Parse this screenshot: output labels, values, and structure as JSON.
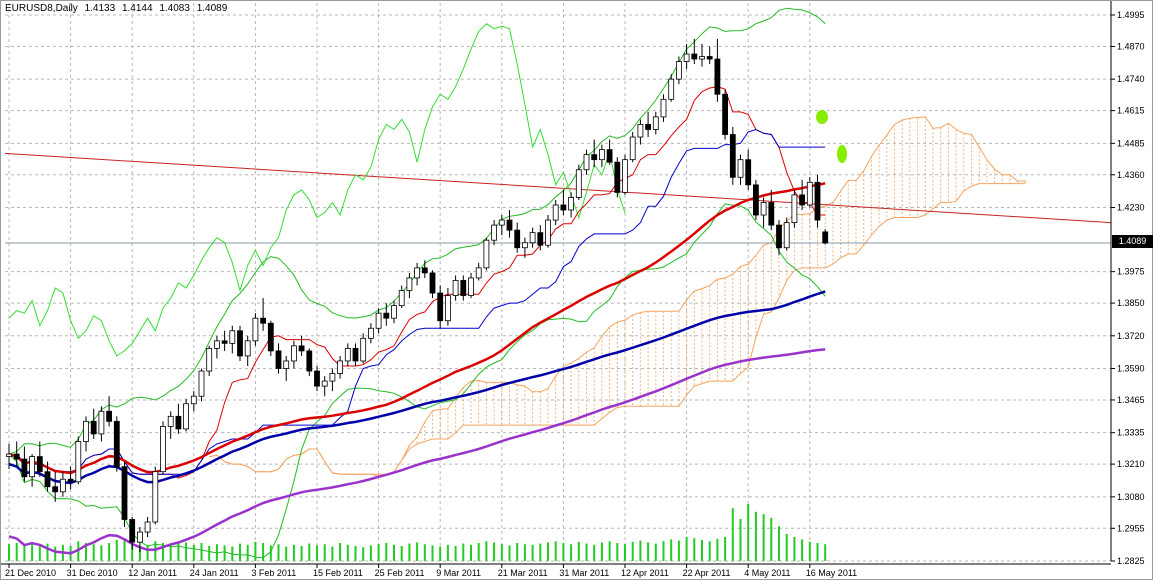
{
  "chart_data": {
    "type": "candlestick",
    "symbol": "EURUSD8",
    "timeframe": "Daily",
    "last_ohlc": {
      "open": "1.4133",
      "high": "1.4144",
      "low": "1.4083",
      "close": "1.4089"
    },
    "current_price_label": "1.4089",
    "current_price": 1.4089,
    "y_ticks": [
      "1.4995",
      "1.4870",
      "1.4740",
      "1.4615",
      "1.4485",
      "1.4360",
      "1.4230",
      "1.3975",
      "1.3850",
      "1.3720",
      "1.3590",
      "1.3465",
      "1.3335",
      "1.3210",
      "1.3080",
      "1.2955",
      "1.2825"
    ],
    "x_ticks": [
      "21 Dec 2010",
      "31 Dec 2010",
      "12 Jan 2011",
      "24 Jan 2011",
      "3 Feb 2011",
      "15 Feb 2011",
      "25 Feb 2011",
      "9 Mar 2011",
      "21 Mar 2011",
      "31 Mar 2011",
      "12 Apr 2011",
      "22 Apr 2011",
      "4 May 2011",
      "16 May 2011"
    ],
    "ylim": [
      1.2825,
      1.4995
    ],
    "grid": true,
    "colors": {
      "bull": "#ffffff",
      "bear": "#000000",
      "wick": "#000000",
      "sma_fast": "#dd0000",
      "sma_mid": "#0000aa",
      "sma_slow": "#9933cc",
      "bollinger": "#22bb22",
      "chikou": "#33dd33",
      "kijun": "#0000cc",
      "tenkan": "#dd0000",
      "cloud": "#f4a460",
      "trendline": "#cc2222",
      "volume": "#22cc22",
      "marker": "#88ee00"
    },
    "candles": [
      [
        1.324,
        1.329,
        1.319,
        1.325
      ],
      [
        1.325,
        1.33,
        1.32,
        1.323
      ],
      [
        1.323,
        1.328,
        1.314,
        1.316
      ],
      [
        1.316,
        1.325,
        1.312,
        1.324
      ],
      [
        1.324,
        1.33,
        1.316,
        1.318
      ],
      [
        1.318,
        1.322,
        1.31,
        1.312
      ],
      [
        1.312,
        1.318,
        1.306,
        1.31
      ],
      [
        1.31,
        1.318,
        1.308,
        1.315
      ],
      [
        1.315,
        1.32,
        1.311,
        1.314
      ],
      [
        1.314,
        1.332,
        1.313,
        1.33
      ],
      [
        1.33,
        1.34,
        1.326,
        1.338
      ],
      [
        1.338,
        1.343,
        1.331,
        1.333
      ],
      [
        1.333,
        1.344,
        1.33,
        1.342
      ],
      [
        1.342,
        1.348,
        1.336,
        1.338
      ],
      [
        1.338,
        1.34,
        1.318,
        1.32
      ],
      [
        1.32,
        1.322,
        1.296,
        1.299
      ],
      [
        1.299,
        1.3,
        1.287,
        1.29
      ],
      [
        1.29,
        1.296,
        1.286,
        1.294
      ],
      [
        1.294,
        1.3,
        1.292,
        1.298
      ],
      [
        1.298,
        1.32,
        1.297,
        1.318
      ],
      [
        1.318,
        1.338,
        1.317,
        1.336
      ],
      [
        1.336,
        1.342,
        1.331,
        1.34
      ],
      [
        1.34,
        1.345,
        1.333,
        1.335
      ],
      [
        1.335,
        1.347,
        1.334,
        1.345
      ],
      [
        1.345,
        1.35,
        1.342,
        1.348
      ],
      [
        1.348,
        1.359,
        1.346,
        1.358
      ],
      [
        1.358,
        1.368,
        1.356,
        1.367
      ],
      [
        1.367,
        1.372,
        1.363,
        1.37
      ],
      [
        1.37,
        1.374,
        1.366,
        1.369
      ],
      [
        1.369,
        1.376,
        1.365,
        1.374
      ],
      [
        1.374,
        1.376,
        1.362,
        1.364
      ],
      [
        1.364,
        1.372,
        1.36,
        1.37
      ],
      [
        1.37,
        1.381,
        1.368,
        1.379
      ],
      [
        1.379,
        1.387,
        1.374,
        1.377
      ],
      [
        1.377,
        1.378,
        1.364,
        1.366
      ],
      [
        1.366,
        1.369,
        1.357,
        1.359
      ],
      [
        1.359,
        1.364,
        1.354,
        1.362
      ],
      [
        1.362,
        1.37,
        1.359,
        1.368
      ],
      [
        1.368,
        1.372,
        1.364,
        1.366
      ],
      [
        1.366,
        1.367,
        1.356,
        1.358
      ],
      [
        1.358,
        1.36,
        1.35,
        1.352
      ],
      [
        1.352,
        1.356,
        1.348,
        1.354
      ],
      [
        1.354,
        1.359,
        1.35,
        1.357
      ],
      [
        1.357,
        1.364,
        1.355,
        1.362
      ],
      [
        1.362,
        1.369,
        1.36,
        1.367
      ],
      [
        1.367,
        1.369,
        1.36,
        1.362
      ],
      [
        1.362,
        1.373,
        1.361,
        1.371
      ],
      [
        1.371,
        1.377,
        1.369,
        1.375
      ],
      [
        1.375,
        1.383,
        1.373,
        1.381
      ],
      [
        1.381,
        1.385,
        1.376,
        1.379
      ],
      [
        1.379,
        1.386,
        1.377,
        1.384
      ],
      [
        1.384,
        1.392,
        1.383,
        1.39
      ],
      [
        1.39,
        1.397,
        1.387,
        1.395
      ],
      [
        1.395,
        1.401,
        1.392,
        1.399
      ],
      [
        1.399,
        1.402,
        1.395,
        1.397
      ],
      [
        1.397,
        1.398,
        1.387,
        1.389
      ],
      [
        1.389,
        1.392,
        1.375,
        1.378
      ],
      [
        1.378,
        1.391,
        1.376,
        1.388
      ],
      [
        1.388,
        1.396,
        1.386,
        1.394
      ],
      [
        1.394,
        1.396,
        1.386,
        1.388
      ],
      [
        1.388,
        1.397,
        1.387,
        1.395
      ],
      [
        1.395,
        1.401,
        1.394,
        1.399
      ],
      [
        1.399,
        1.411,
        1.398,
        1.41
      ],
      [
        1.41,
        1.418,
        1.408,
        1.416
      ],
      [
        1.416,
        1.42,
        1.412,
        1.418
      ],
      [
        1.418,
        1.422,
        1.411,
        1.414
      ],
      [
        1.414,
        1.417,
        1.405,
        1.407
      ],
      [
        1.407,
        1.411,
        1.403,
        1.409
      ],
      [
        1.409,
        1.415,
        1.407,
        1.413
      ],
      [
        1.413,
        1.416,
        1.406,
        1.408
      ],
      [
        1.408,
        1.42,
        1.407,
        1.418
      ],
      [
        1.418,
        1.426,
        1.416,
        1.424
      ],
      [
        1.424,
        1.43,
        1.42,
        1.422
      ],
      [
        1.422,
        1.429,
        1.419,
        1.427
      ],
      [
        1.427,
        1.44,
        1.426,
        1.438
      ],
      [
        1.438,
        1.446,
        1.436,
        1.444
      ],
      [
        1.444,
        1.45,
        1.439,
        1.442
      ],
      [
        1.442,
        1.448,
        1.439,
        1.446
      ],
      [
        1.446,
        1.45,
        1.44,
        1.441
      ],
      [
        1.441,
        1.443,
        1.427,
        1.429
      ],
      [
        1.429,
        1.444,
        1.428,
        1.442
      ],
      [
        1.442,
        1.453,
        1.441,
        1.451
      ],
      [
        1.451,
        1.458,
        1.448,
        1.456
      ],
      [
        1.456,
        1.461,
        1.451,
        1.454
      ],
      [
        1.454,
        1.461,
        1.452,
        1.459
      ],
      [
        1.459,
        1.468,
        1.457,
        1.466
      ],
      [
        1.466,
        1.476,
        1.465,
        1.474
      ],
      [
        1.474,
        1.483,
        1.472,
        1.481
      ],
      [
        1.481,
        1.488,
        1.478,
        1.484
      ],
      [
        1.484,
        1.49,
        1.48,
        1.482
      ],
      [
        1.482,
        1.488,
        1.479,
        1.483
      ],
      [
        1.483,
        1.487,
        1.48,
        1.482
      ],
      [
        1.482,
        1.49,
        1.465,
        1.468
      ],
      [
        1.468,
        1.47,
        1.45,
        1.452
      ],
      [
        1.452,
        1.455,
        1.432,
        1.435
      ],
      [
        1.435,
        1.444,
        1.432,
        1.442
      ],
      [
        1.442,
        1.446,
        1.43,
        1.432
      ],
      [
        1.432,
        1.434,
        1.418,
        1.42
      ],
      [
        1.42,
        1.427,
        1.415,
        1.425
      ],
      [
        1.425,
        1.43,
        1.414,
        1.416
      ],
      [
        1.416,
        1.418,
        1.404,
        1.407
      ],
      [
        1.407,
        1.419,
        1.406,
        1.417
      ],
      [
        1.417,
        1.43,
        1.415,
        1.428
      ],
      [
        1.428,
        1.434,
        1.422,
        1.424
      ],
      [
        1.424,
        1.435,
        1.423,
        1.433
      ],
      [
        1.433,
        1.436,
        1.415,
        1.418
      ],
      [
        1.4133,
        1.4144,
        1.4083,
        1.4089
      ]
    ],
    "volume": [
      28,
      30,
      26,
      31,
      27,
      29,
      24,
      27,
      25,
      33,
      30,
      28,
      26,
      30,
      35,
      38,
      28,
      25,
      27,
      33,
      30,
      26,
      29,
      31,
      27,
      30,
      25,
      28,
      26,
      24,
      29,
      27,
      32,
      30,
      26,
      28,
      24,
      27,
      25,
      29,
      26,
      28,
      24,
      30,
      27,
      25,
      23,
      26,
      28,
      30,
      27,
      25,
      29,
      31,
      28,
      26,
      24,
      27,
      25,
      29,
      27,
      30,
      33,
      31,
      28,
      26,
      30,
      28,
      27,
      29,
      31,
      33,
      30,
      28,
      32,
      29,
      27,
      31,
      33,
      30,
      28,
      32,
      34,
      31,
      29,
      33,
      36,
      34,
      40,
      38,
      35,
      33,
      37,
      40,
      88,
      70,
      95,
      82,
      78,
      72,
      58,
      45,
      40,
      36,
      32,
      30,
      28
    ]
  }
}
